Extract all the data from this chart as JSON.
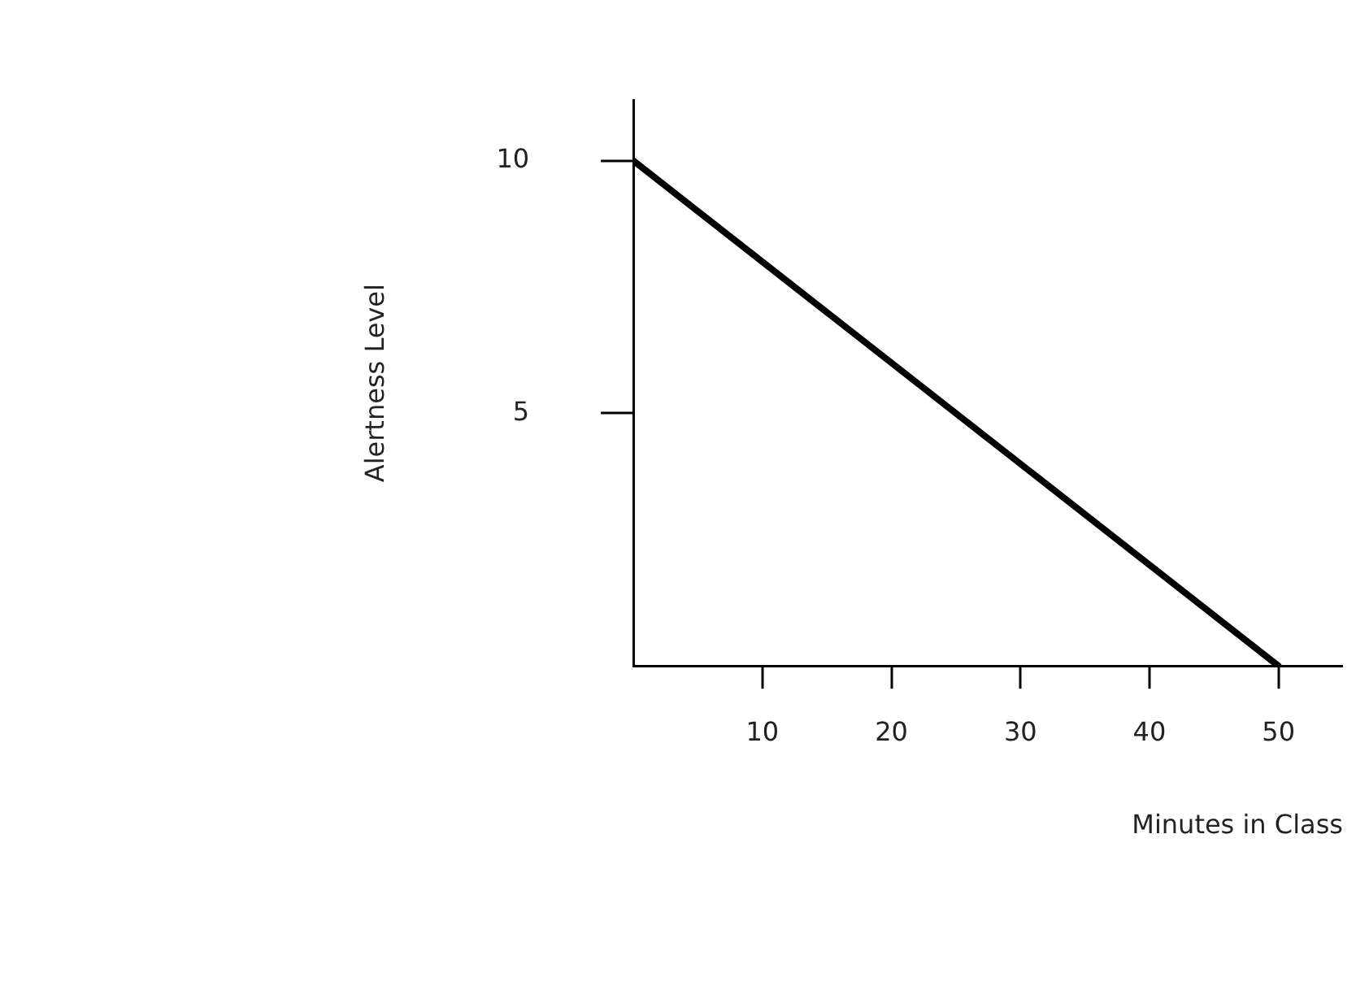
{
  "chart_data": {
    "type": "line",
    "xlabel": "Minutes in Class",
    "ylabel": "Alertness Level",
    "x": [
      0,
      50
    ],
    "series": [
      {
        "color": "#000000",
        "values": [
          10,
          0
        ]
      }
    ],
    "xlim": [
      0,
      55
    ],
    "ylim": [
      0,
      11.2
    ],
    "xticks": [
      10,
      20,
      30,
      40,
      50
    ],
    "yticks": [
      5,
      10
    ],
    "grid": false,
    "legend": false,
    "marker": "none",
    "line_style": "solid"
  }
}
